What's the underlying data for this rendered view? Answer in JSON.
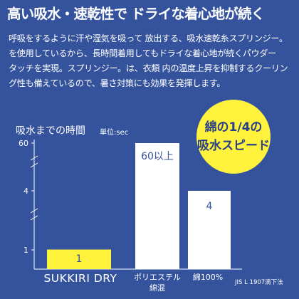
{
  "headline": "高い吸水・速乾性で ドライな着心地が続く",
  "body_lines": [
    "呼吸をするように汗や湿気を吸って 放出する、吸水速乾糸スプリンジー。",
    "を使用しているから、長時間着用してもドライな着心地が続くパウダー",
    "タッチを実現。スプリンジー。は、衣類 内の温度上昇を抑制するクーリン",
    "グ性も備えているので、暑さ対策にも効果を発揮します。"
  ],
  "callout": {
    "line1": "綿の1/4の",
    "line2": "吸水スピード"
  },
  "footnote": "JIS L 1907滴下法",
  "chart_data": {
    "type": "bar",
    "title": "吸水までの時間",
    "unit": "単位:sec",
    "categories": [
      "SUKKIRI DRY",
      "ポリエステル綿混",
      "綿100%"
    ],
    "values": [
      1,
      60,
      4
    ],
    "value_labels": [
      "1",
      "60以上",
      "4"
    ],
    "y_ticks": [
      "60",
      "4",
      "1"
    ],
    "axis_break": true,
    "colors": {
      "highlight": "#fff23c",
      "bar": "#ffffff",
      "axis": "#ffffff",
      "label_dark": "#35539c"
    }
  }
}
